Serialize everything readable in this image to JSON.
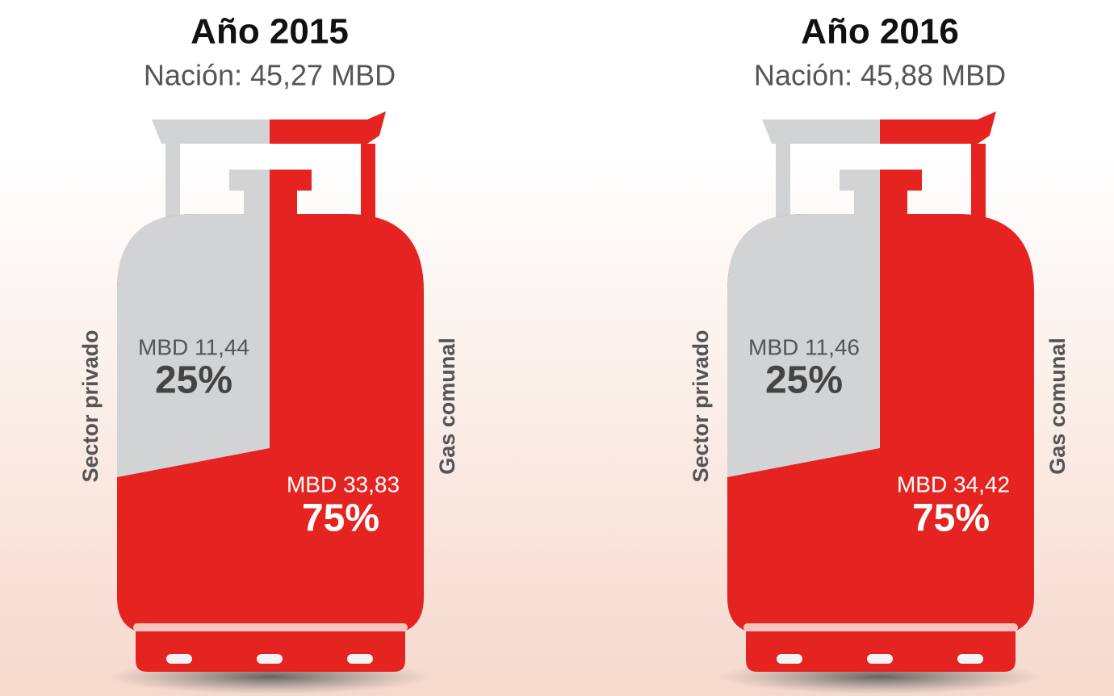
{
  "panels": [
    {
      "title": "Año 2015",
      "subtitle": "Nación: 45,27 MBD",
      "segments": [
        {
          "name": "Sector privado",
          "amount": "MBD 11,44",
          "share": "25%"
        },
        {
          "name": "Gas comunal",
          "amount": "MBD 33,83",
          "share": "75%"
        }
      ]
    },
    {
      "title": "Año 2016",
      "subtitle": "Nación: 45,88 MBD",
      "segments": [
        {
          "name": "Sector privado",
          "amount": "MBD 11,46",
          "share": "25%"
        },
        {
          "name": "Gas comunal",
          "amount": "MBD 34,42",
          "share": "75%"
        }
      ]
    }
  ]
}
